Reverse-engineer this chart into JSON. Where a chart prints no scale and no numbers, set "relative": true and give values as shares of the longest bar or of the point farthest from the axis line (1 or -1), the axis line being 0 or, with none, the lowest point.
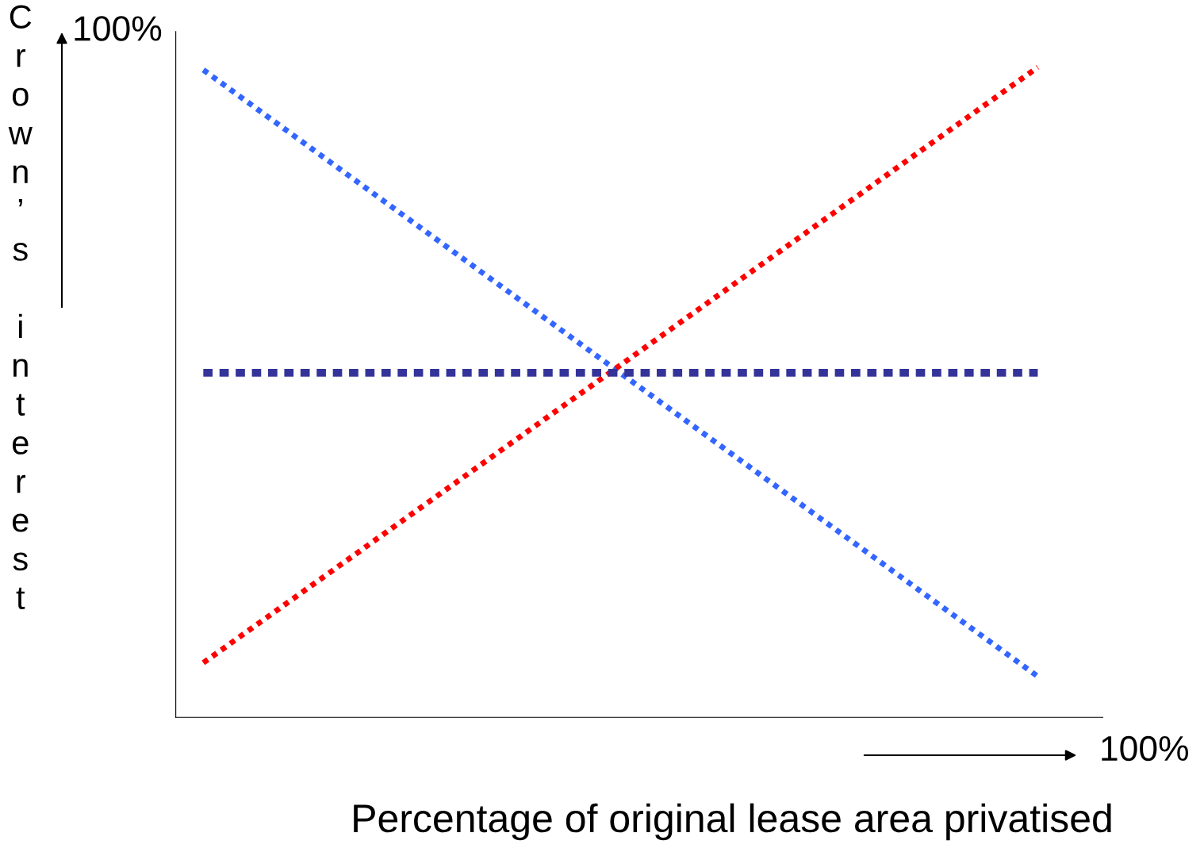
{
  "chart_data": {
    "type": "line",
    "relative": true,
    "categories": [
      null,
      null
    ],
    "ylabel": "Crown’s interest",
    "xlabel": "Percentage of original lease area privatised",
    "annotations": [
      "100%",
      "100%"
    ],
    "series": [
      {
        "color": "#3366ff",
        "values": [
          0.996,
          0.063
        ],
        "line_style": "dotted"
      },
      {
        "color": "#ff0000",
        "values": [
          0.084,
          1
        ],
        "line_style": "dotted"
      },
      {
        "color": "#333399",
        "values": [
          0.53,
          0.53
        ],
        "line_style": "dashed"
      }
    ],
    "legend": false
  }
}
